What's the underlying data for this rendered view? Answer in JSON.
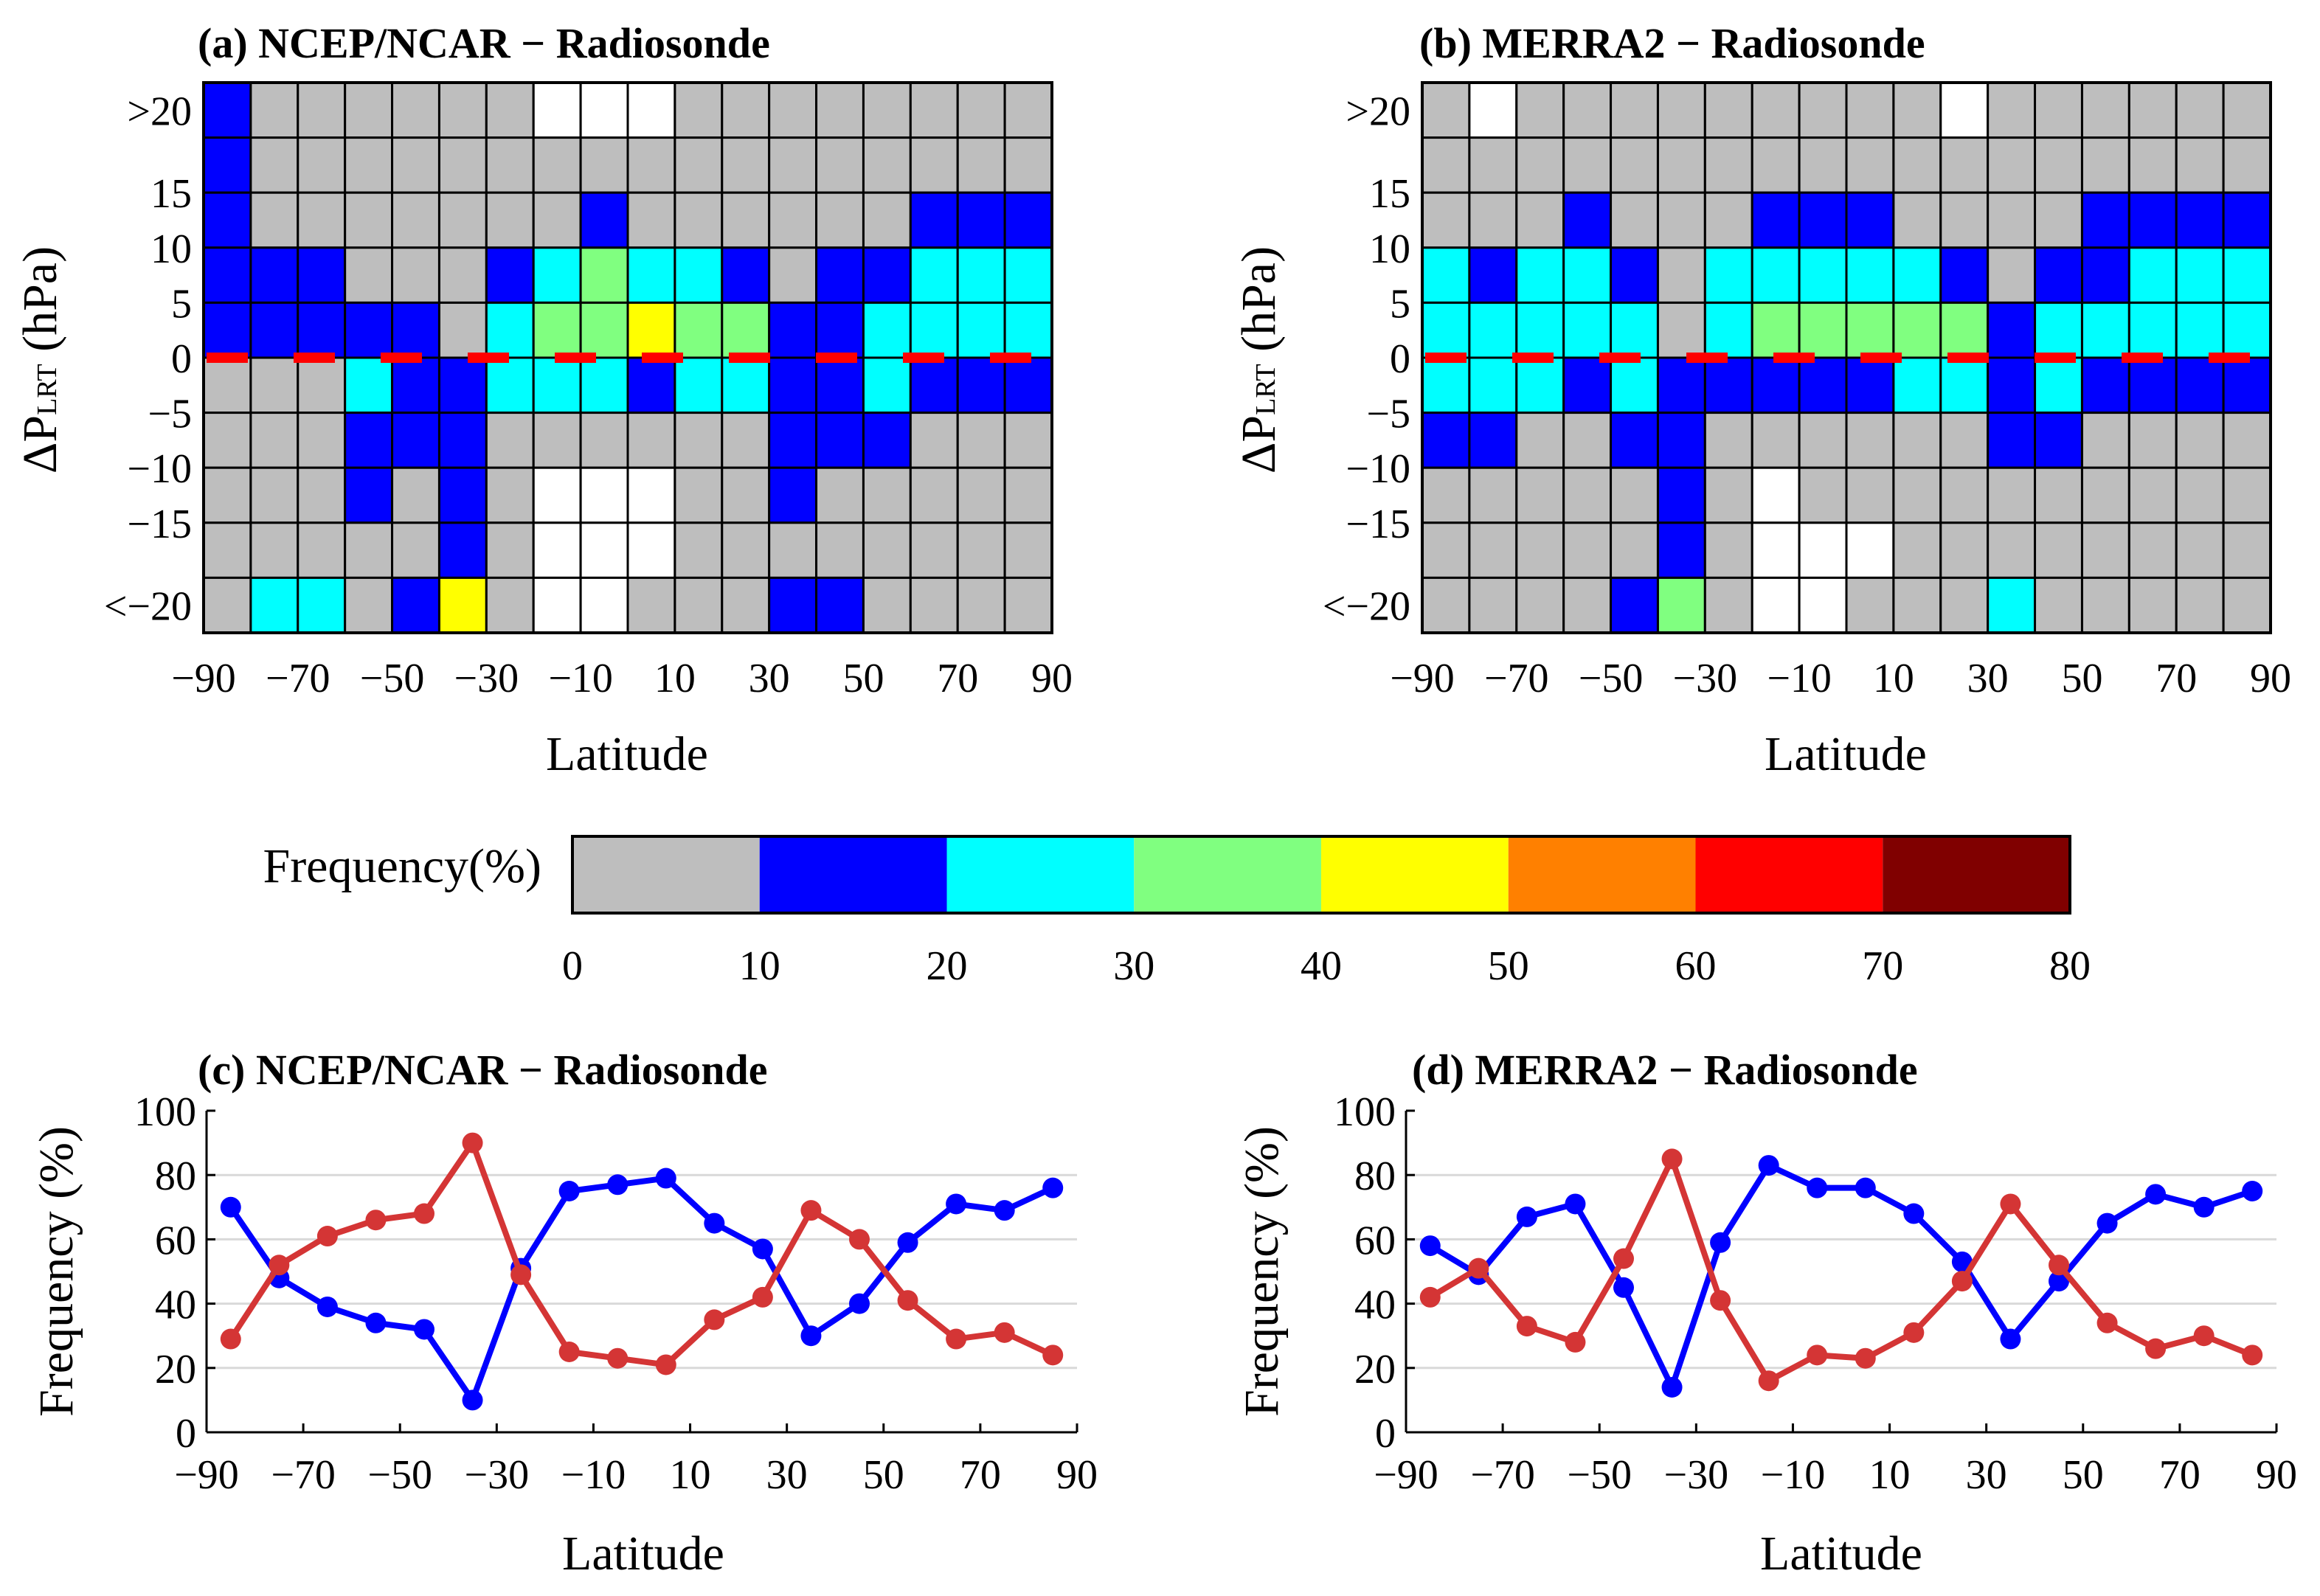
{
  "colors": {
    "bins": [
      "#bebebe",
      "#0000ff",
      "#00ffff",
      "#80ff80",
      "#ffff00",
      "#ff8000",
      "#ff0000",
      "#800000"
    ],
    "missing": "#ffffff",
    "zero_line": "#ff0000",
    "positive_series": "#0000ff",
    "negative_series": "#d43535",
    "grid": "#d9d9d9"
  },
  "colorbar": {
    "label": "Frequency(%)",
    "ticks": [
      "0",
      "10",
      "20",
      "30",
      "40",
      "50",
      "60",
      "70",
      "80"
    ]
  },
  "chart_data": [
    {
      "type": "heatmap",
      "title": "(a) NCEP/NCAR − Radiosonde",
      "xlabel": "Latitude",
      "ylabel_main": "ΔP",
      "ylabel_sub": "LRT",
      "ylabel_unit": " (hPa)",
      "x_ticks": [
        "−90",
        "−70",
        "−50",
        "−30",
        "−10",
        "10",
        "30",
        "50",
        "70",
        "90"
      ],
      "y_ticks": [
        ">20",
        "15",
        "10",
        "5",
        "0",
        "−5",
        "−10",
        "−15",
        "<−20"
      ],
      "x_range": [
        -90,
        90
      ],
      "x_bin_width": 10,
      "y_bins_top_to_bottom": [
        ">20",
        "15 to 20",
        "10 to 15",
        "5 to 10",
        "0 to 5",
        "-5 to 0",
        "-10 to -5",
        "-15 to -10",
        "-20 to -15",
        "<-20"
      ],
      "value_encoding": "frequency bin index: 0 = 0-10%, 1 = 10-20%, 2 = 20-30%, 3 = 30-40%, 4 = 40-50%, -1 = no data",
      "bins": [
        [
          1,
          0,
          0,
          0,
          0,
          0,
          0,
          -1,
          -1,
          -1,
          0,
          0,
          0,
          0,
          0,
          0,
          0,
          0
        ],
        [
          1,
          0,
          0,
          0,
          0,
          0,
          0,
          0,
          0,
          0,
          0,
          0,
          0,
          0,
          0,
          0,
          0,
          0
        ],
        [
          1,
          0,
          0,
          0,
          0,
          0,
          0,
          0,
          1,
          0,
          0,
          0,
          0,
          0,
          0,
          1,
          1,
          1
        ],
        [
          1,
          1,
          1,
          0,
          0,
          0,
          1,
          2,
          3,
          2,
          2,
          1,
          0,
          1,
          1,
          2,
          2,
          2
        ],
        [
          1,
          1,
          1,
          1,
          1,
          0,
          2,
          3,
          3,
          4,
          3,
          3,
          1,
          1,
          2,
          2,
          2,
          2
        ],
        [
          0,
          0,
          0,
          2,
          1,
          1,
          2,
          2,
          2,
          1,
          2,
          2,
          1,
          1,
          2,
          1,
          1,
          1
        ],
        [
          0,
          0,
          0,
          1,
          1,
          1,
          0,
          0,
          0,
          0,
          0,
          0,
          1,
          1,
          1,
          0,
          0,
          0
        ],
        [
          0,
          0,
          0,
          1,
          0,
          1,
          0,
          -1,
          -1,
          -1,
          0,
          0,
          1,
          0,
          0,
          0,
          0,
          0
        ],
        [
          0,
          0,
          0,
          0,
          0,
          1,
          0,
          -1,
          -1,
          -1,
          0,
          0,
          0,
          0,
          0,
          0,
          0,
          0
        ],
        [
          0,
          2,
          2,
          0,
          1,
          4,
          0,
          -1,
          -1,
          0,
          0,
          0,
          1,
          1,
          0,
          0,
          0,
          0
        ]
      ]
    },
    {
      "type": "heatmap",
      "title": "(b) MERRA2 − Radiosonde",
      "xlabel": "Latitude",
      "ylabel_main": "ΔP",
      "ylabel_sub": "LRT",
      "ylabel_unit": " (hPa)",
      "x_ticks": [
        "−90",
        "−70",
        "−50",
        "−30",
        "−10",
        "10",
        "30",
        "50",
        "70",
        "90"
      ],
      "y_ticks": [
        ">20",
        "15",
        "10",
        "5",
        "0",
        "−5",
        "−10",
        "−15",
        "<−20"
      ],
      "x_range": [
        -90,
        90
      ],
      "x_bin_width": 10,
      "y_bins_top_to_bottom": [
        ">20",
        "15 to 20",
        "10 to 15",
        "5 to 10",
        "0 to 5",
        "-5 to 0",
        "-10 to -5",
        "-15 to -10",
        "-20 to -15",
        "<-20"
      ],
      "value_encoding": "frequency bin index: 0 = 0-10%, 1 = 10-20%, 2 = 20-30%, 3 = 30-40%, -1 = no data",
      "bins": [
        [
          0,
          -1,
          0,
          0,
          0,
          0,
          0,
          0,
          0,
          0,
          0,
          -1,
          0,
          0,
          0,
          0,
          0,
          0
        ],
        [
          0,
          0,
          0,
          0,
          0,
          0,
          0,
          0,
          0,
          0,
          0,
          0,
          0,
          0,
          0,
          0,
          0,
          0
        ],
        [
          0,
          0,
          0,
          1,
          0,
          0,
          0,
          1,
          1,
          1,
          0,
          0,
          0,
          0,
          1,
          1,
          1,
          1
        ],
        [
          2,
          1,
          2,
          2,
          1,
          0,
          2,
          2,
          2,
          2,
          2,
          1,
          0,
          1,
          1,
          2,
          2,
          2
        ],
        [
          2,
          2,
          2,
          2,
          2,
          0,
          2,
          3,
          3,
          3,
          3,
          3,
          1,
          2,
          2,
          2,
          2,
          2
        ],
        [
          2,
          2,
          2,
          1,
          2,
          1,
          1,
          1,
          1,
          1,
          2,
          2,
          1,
          2,
          1,
          1,
          1,
          1
        ],
        [
          1,
          1,
          0,
          0,
          1,
          1,
          0,
          0,
          0,
          0,
          0,
          0,
          1,
          1,
          0,
          0,
          0,
          0
        ],
        [
          0,
          0,
          0,
          0,
          0,
          1,
          0,
          -1,
          0,
          0,
          0,
          0,
          0,
          0,
          0,
          0,
          0,
          0
        ],
        [
          0,
          0,
          0,
          0,
          0,
          1,
          0,
          -1,
          -1,
          -1,
          0,
          0,
          0,
          0,
          0,
          0,
          0,
          0
        ],
        [
          0,
          0,
          0,
          0,
          1,
          3,
          0,
          -1,
          -1,
          0,
          0,
          0,
          2,
          0,
          0,
          0,
          0,
          0
        ]
      ]
    },
    {
      "type": "line",
      "title": "(c) NCEP/NCAR − Radiosonde",
      "xlabel": "Latitude",
      "ylabel": "Frequency (%)",
      "x_ticks": [
        "−90",
        "−70",
        "−50",
        "−30",
        "−10",
        "10",
        "30",
        "50",
        "70",
        "90"
      ],
      "y_ticks": [
        "0",
        "20",
        "40",
        "60",
        "80",
        "100"
      ],
      "xlim": [
        -90,
        90
      ],
      "ylim": [
        0,
        100
      ],
      "grid": "horizontal",
      "x": [
        -85,
        -75,
        -65,
        -55,
        -45,
        -35,
        -25,
        -15,
        -5,
        5,
        15,
        25,
        35,
        45,
        55,
        65,
        75,
        85
      ],
      "series": [
        {
          "color": "#0000ff",
          "values": [
            70,
            48,
            39,
            34,
            32,
            10,
            51,
            75,
            77,
            79,
            65,
            57,
            30,
            40,
            59,
            71,
            69,
            76
          ]
        },
        {
          "color": "#d43535",
          "values": [
            29,
            52,
            61,
            66,
            68,
            90,
            49,
            25,
            23,
            21,
            35,
            42,
            69,
            60,
            41,
            29,
            31,
            24
          ]
        }
      ]
    },
    {
      "type": "line",
      "title": "(d) MERRA2 − Radiosonde",
      "xlabel": "Latitude",
      "ylabel": "Frequency (%)",
      "x_ticks": [
        "−90",
        "−70",
        "−50",
        "−30",
        "−10",
        "10",
        "30",
        "50",
        "70",
        "90"
      ],
      "y_ticks": [
        "0",
        "20",
        "40",
        "60",
        "80",
        "100"
      ],
      "xlim": [
        -90,
        90
      ],
      "ylim": [
        0,
        100
      ],
      "grid": "horizontal",
      "x": [
        -85,
        -75,
        -65,
        -55,
        -45,
        -35,
        -25,
        -15,
        -5,
        5,
        15,
        25,
        35,
        45,
        55,
        65,
        75,
        85
      ],
      "series": [
        {
          "color": "#0000ff",
          "values": [
            58,
            49,
            67,
            71,
            45,
            14,
            59,
            83,
            76,
            76,
            68,
            53,
            29,
            47,
            65,
            74,
            70,
            75
          ]
        },
        {
          "color": "#d43535",
          "values": [
            42,
            51,
            33,
            28,
            54,
            85,
            41,
            16,
            24,
            23,
            31,
            47,
            71,
            52,
            34,
            26,
            30,
            24
          ]
        }
      ]
    }
  ]
}
